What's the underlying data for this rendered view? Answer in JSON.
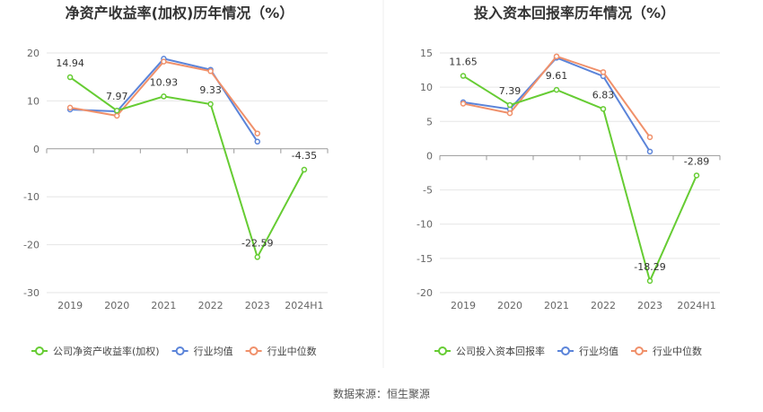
{
  "colors": {
    "company": "#66cc33",
    "average": "#5b84d9",
    "median": "#f0906a",
    "grid": "#e6e6e6",
    "axis": "#999999",
    "divider": "#eeeeee"
  },
  "source": {
    "label": "数据来源：",
    "value": "恒生聚源"
  },
  "chart_data": [
    {
      "type": "line",
      "title": "净资产收益率(加权)历年情况（%）",
      "categories": [
        "2019",
        "2020",
        "2021",
        "2022",
        "2023",
        "2024H1"
      ],
      "ylim": [
        -30,
        20
      ],
      "yticks": [
        20,
        10,
        0,
        -10,
        -20,
        -30
      ],
      "grid": true,
      "legend": "bottom",
      "series": [
        {
          "name": "公司净资产收益率(加权)",
          "color_key": "company",
          "labeled": true,
          "values": [
            14.94,
            7.97,
            10.93,
            9.33,
            -22.59,
            -4.35
          ],
          "labels": [
            "14.94",
            "7.97",
            "10.93",
            "9.33",
            "-22.59",
            "-4.35"
          ]
        },
        {
          "name": "行业均值",
          "color_key": "average",
          "labeled": false,
          "values": [
            8.2,
            7.8,
            18.8,
            16.5,
            1.5,
            null
          ]
        },
        {
          "name": "行业中位数",
          "color_key": "median",
          "labeled": false,
          "values": [
            8.6,
            6.9,
            18.2,
            16.2,
            3.2,
            null
          ]
        }
      ]
    },
    {
      "type": "line",
      "title": "投入资本回报率历年情况（%）",
      "categories": [
        "2019",
        "2020",
        "2021",
        "2022",
        "2023",
        "2024H1"
      ],
      "ylim": [
        -20,
        15
      ],
      "yticks": [
        15,
        10,
        5,
        0,
        -5,
        -10,
        -15,
        -20
      ],
      "grid": true,
      "legend": "bottom",
      "series": [
        {
          "name": "公司投入资本回报率",
          "color_key": "company",
          "labeled": true,
          "values": [
            11.65,
            7.39,
            9.61,
            6.83,
            -18.29,
            -2.89
          ],
          "labels": [
            "11.65",
            "7.39",
            "9.61",
            "6.83",
            "-18.29",
            "-2.89"
          ]
        },
        {
          "name": "行业均值",
          "color_key": "average",
          "labeled": false,
          "values": [
            7.8,
            6.8,
            14.3,
            11.6,
            0.6,
            null
          ]
        },
        {
          "name": "行业中位数",
          "color_key": "median",
          "labeled": false,
          "values": [
            7.6,
            6.2,
            14.5,
            12.2,
            2.7,
            null
          ]
        }
      ]
    }
  ]
}
